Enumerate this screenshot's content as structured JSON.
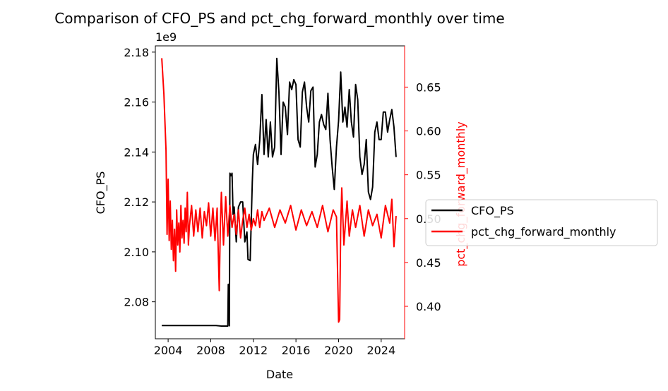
{
  "chart_data": {
    "type": "line",
    "title": "Comparison of CFO_PS and pct_chg_forward_monthly over time",
    "xlabel": "Date",
    "xlim": [
      2002.8,
      2026.2
    ],
    "x_ticks": [
      2004,
      2008,
      2012,
      2016,
      2020,
      2024
    ],
    "x_tick_labels": [
      "2004",
      "2008",
      "2012",
      "2016",
      "2020",
      "2024"
    ],
    "y_left": {
      "label": "CFO_PS",
      "offset_label": "1e9",
      "lim": [
        2.0652,
        2.1825
      ],
      "ticks": [
        2.08,
        2.1,
        2.12,
        2.14,
        2.16,
        2.18
      ],
      "tick_labels": [
        "2.08",
        "2.10",
        "2.12",
        "2.14",
        "2.16",
        "2.18"
      ],
      "color": "#000000"
    },
    "y_right": {
      "label": "pct_chg_forward_monthly",
      "lim": [
        0.363,
        0.697
      ],
      "ticks": [
        0.4,
        0.45,
        0.5,
        0.55,
        0.6,
        0.65
      ],
      "tick_labels": [
        "0.40",
        "0.45",
        "0.50",
        "0.55",
        "0.60",
        "0.65"
      ],
      "color": "#ff0000"
    },
    "legend_placement": "right",
    "grid": false,
    "series": [
      {
        "name": "CFO_PS",
        "axis": "left",
        "color": "#000000",
        "x": [
          2003.4,
          2006.0,
          2008.5,
          2009.0,
          2009.6,
          2009.65,
          2009.7,
          2009.75,
          2009.8,
          2009.9,
          2010.0,
          2010.1,
          2010.2,
          2010.3,
          2010.4,
          2010.5,
          2010.6,
          2010.8,
          2011.0,
          2011.2,
          2011.4,
          2011.5,
          2011.7,
          2011.9,
          2012.0,
          2012.2,
          2012.4,
          2012.6,
          2012.8,
          2013.0,
          2013.2,
          2013.4,
          2013.6,
          2013.8,
          2014.0,
          2014.2,
          2014.4,
          2014.6,
          2014.8,
          2015.0,
          2015.2,
          2015.4,
          2015.6,
          2015.8,
          2016.0,
          2016.2,
          2016.4,
          2016.6,
          2016.8,
          2017.0,
          2017.2,
          2017.4,
          2017.6,
          2017.8,
          2018.0,
          2018.2,
          2018.4,
          2018.6,
          2018.8,
          2019.0,
          2019.2,
          2019.4,
          2019.6,
          2019.8,
          2020.0,
          2020.2,
          2020.4,
          2020.6,
          2020.8,
          2021.0,
          2021.2,
          2021.4,
          2021.6,
          2021.8,
          2022.0,
          2022.2,
          2022.4,
          2022.6,
          2022.8,
          2023.0,
          2023.2,
          2023.4,
          2023.6,
          2023.8,
          2024.0,
          2024.2,
          2024.4,
          2024.6,
          2024.8,
          2025.0,
          2025.2,
          2025.4
        ],
        "values": [
          2.0705,
          2.0705,
          2.0705,
          2.0703,
          2.0703,
          2.087,
          2.087,
          2.0704,
          2.1315,
          2.1305,
          2.1315,
          2.115,
          2.118,
          2.111,
          2.104,
          2.112,
          2.118,
          2.12,
          2.12,
          2.104,
          2.108,
          2.097,
          2.0965,
          2.128,
          2.139,
          2.143,
          2.135,
          2.1445,
          2.163,
          2.139,
          2.153,
          2.138,
          2.152,
          2.138,
          2.142,
          2.1775,
          2.164,
          2.139,
          2.16,
          2.158,
          2.147,
          2.168,
          2.165,
          2.169,
          2.167,
          2.145,
          2.142,
          2.164,
          2.168,
          2.158,
          2.152,
          2.1645,
          2.166,
          2.134,
          2.139,
          2.152,
          2.155,
          2.151,
          2.149,
          2.1635,
          2.145,
          2.134,
          2.125,
          2.142,
          2.1525,
          2.172,
          2.152,
          2.158,
          2.15,
          2.165,
          2.152,
          2.146,
          2.167,
          2.161,
          2.138,
          2.131,
          2.135,
          2.145,
          2.124,
          2.121,
          2.126,
          2.148,
          2.152,
          2.145,
          2.145,
          2.156,
          2.156,
          2.148,
          2.153,
          2.157,
          2.15,
          2.138
        ]
      },
      {
        "name": "pct_chg_forward_monthly",
        "axis": "right",
        "color": "#ff0000",
        "x": [
          2003.4,
          2003.6,
          2003.8,
          2003.9,
          2004.0,
          2004.1,
          2004.2,
          2004.3,
          2004.4,
          2004.5,
          2004.6,
          2004.7,
          2004.8,
          2004.9,
          2005.0,
          2005.1,
          2005.2,
          2005.3,
          2005.4,
          2005.5,
          2005.6,
          2005.7,
          2005.8,
          2005.9,
          2006.0,
          2006.2,
          2006.4,
          2006.6,
          2006.8,
          2007.0,
          2007.2,
          2007.4,
          2007.6,
          2007.8,
          2008.0,
          2008.2,
          2008.4,
          2008.6,
          2008.8,
          2008.9,
          2009.0,
          2009.2,
          2009.4,
          2009.6,
          2009.8,
          2010.0,
          2010.2,
          2010.4,
          2010.6,
          2010.8,
          2011.0,
          2011.2,
          2011.4,
          2011.6,
          2011.8,
          2012.0,
          2012.2,
          2012.4,
          2012.6,
          2012.8,
          2013.0,
          2013.5,
          2014.0,
          2014.5,
          2015.0,
          2015.5,
          2016.0,
          2016.5,
          2017.0,
          2017.5,
          2018.0,
          2018.5,
          2019.0,
          2019.5,
          2019.8,
          2020.0,
          2020.1,
          2020.2,
          2020.3,
          2020.5,
          2020.8,
          2021.0,
          2021.3,
          2021.6,
          2022.0,
          2022.4,
          2022.8,
          2023.2,
          2023.6,
          2024.0,
          2024.4,
          2024.8,
          2025.0,
          2025.2,
          2025.4
        ],
        "values": [
          0.683,
          0.642,
          0.578,
          0.482,
          0.545,
          0.475,
          0.52,
          0.465,
          0.498,
          0.452,
          0.488,
          0.44,
          0.51,
          0.47,
          0.495,
          0.462,
          0.515,
          0.478,
          0.498,
          0.472,
          0.512,
          0.485,
          0.53,
          0.47,
          0.492,
          0.515,
          0.48,
          0.51,
          0.485,
          0.512,
          0.478,
          0.508,
          0.492,
          0.518,
          0.48,
          0.512,
          0.475,
          0.512,
          0.418,
          0.49,
          0.53,
          0.47,
          0.525,
          0.48,
          0.515,
          0.49,
          0.505,
          0.482,
          0.51,
          0.478,
          0.498,
          0.512,
          0.49,
          0.505,
          0.487,
          0.5,
          0.492,
          0.51,
          0.49,
          0.508,
          0.498,
          0.512,
          0.49,
          0.51,
          0.495,
          0.515,
          0.487,
          0.51,
          0.492,
          0.508,
          0.49,
          0.515,
          0.485,
          0.51,
          0.502,
          0.382,
          0.385,
          0.49,
          0.535,
          0.47,
          0.52,
          0.48,
          0.51,
          0.49,
          0.515,
          0.48,
          0.51,
          0.492,
          0.505,
          0.478,
          0.515,
          0.495,
          0.522,
          0.468,
          0.503
        ]
      }
    ]
  }
}
